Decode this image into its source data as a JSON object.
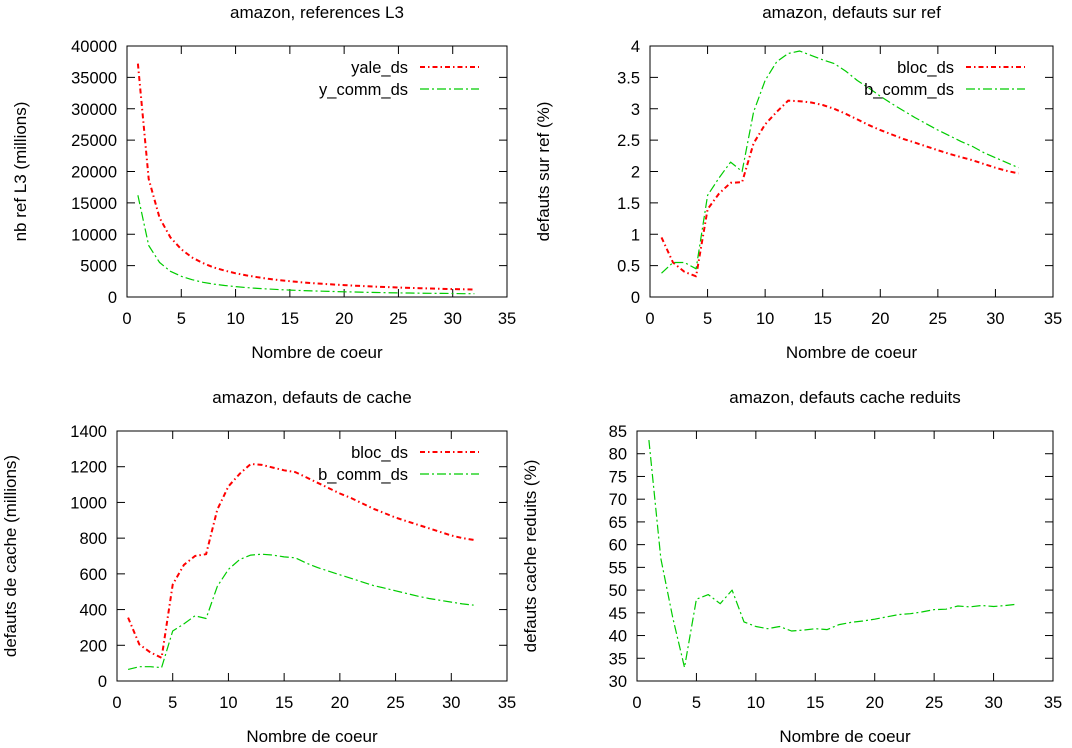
{
  "chart_data": [
    {
      "type": "line",
      "title": "amazon, references L3",
      "xlabel": "Nombre de coeur",
      "ylabel": "nb ref L3 (millions)",
      "xlim": [
        0,
        35
      ],
      "ylim": [
        0,
        40000
      ],
      "xticks": [
        0,
        5,
        10,
        15,
        20,
        25,
        30,
        35
      ],
      "yticks": [
        0,
        5000,
        10000,
        15000,
        20000,
        25000,
        30000,
        35000,
        40000
      ],
      "legend_position": "top-right",
      "series": [
        {
          "name": "yale_ds",
          "color": "#ff0000",
          "dash": "dash-dot",
          "x": [
            1,
            2,
            3,
            4,
            5,
            6,
            7,
            8,
            9,
            10,
            11,
            12,
            13,
            14,
            15,
            16,
            17,
            18,
            19,
            20,
            21,
            22,
            23,
            24,
            25,
            26,
            27,
            28,
            29,
            30,
            31,
            32
          ],
          "y": [
            37200,
            18800,
            12600,
            9500,
            7600,
            6300,
            5400,
            4700,
            4200,
            3780,
            3440,
            3150,
            2900,
            2700,
            2520,
            2360,
            2220,
            2100,
            1990,
            1890,
            1800,
            1720,
            1640,
            1570,
            1510,
            1450,
            1400,
            1350,
            1300,
            1260,
            1220,
            1180
          ]
        },
        {
          "name": "y_comm_ds",
          "color": "#00cc00",
          "dash": "long-dash-dot",
          "x": [
            1,
            2,
            3,
            4,
            5,
            6,
            7,
            8,
            9,
            10,
            11,
            12,
            13,
            14,
            15,
            16,
            17,
            18,
            19,
            20,
            21,
            22,
            23,
            24,
            25,
            26,
            27,
            28,
            29,
            30,
            31,
            32
          ],
          "y": [
            16200,
            8200,
            5500,
            4100,
            3300,
            2750,
            2350,
            2060,
            1830,
            1650,
            1500,
            1370,
            1270,
            1180,
            1100,
            1030,
            970,
            920,
            870,
            830,
            790,
            750,
            720,
            690,
            660,
            640,
            610,
            590,
            570,
            550,
            530,
            520
          ]
        }
      ]
    },
    {
      "type": "line",
      "title": "amazon, defauts sur ref",
      "xlabel": "Nombre de coeur",
      "ylabel": "defauts sur ref (%)",
      "xlim": [
        0,
        35
      ],
      "ylim": [
        0,
        4
      ],
      "xticks": [
        0,
        5,
        10,
        15,
        20,
        25,
        30,
        35
      ],
      "yticks": [
        0,
        0.5,
        1,
        1.5,
        2,
        2.5,
        3,
        3.5,
        4
      ],
      "legend_position": "top-right",
      "series": [
        {
          "name": "bloc_ds",
          "color": "#ff0000",
          "dash": "dash-dot",
          "x": [
            1,
            2,
            3,
            4,
            5,
            6,
            7,
            8,
            9,
            10,
            11,
            12,
            13,
            14,
            15,
            16,
            17,
            18,
            19,
            20,
            21,
            22,
            23,
            24,
            25,
            26,
            27,
            28,
            29,
            30,
            31,
            32
          ],
          "y": [
            0.95,
            0.55,
            0.4,
            0.33,
            1.4,
            1.65,
            1.82,
            1.83,
            2.45,
            2.75,
            2.95,
            3.13,
            3.12,
            3.1,
            3.06,
            3.0,
            2.92,
            2.83,
            2.74,
            2.66,
            2.59,
            2.52,
            2.46,
            2.4,
            2.34,
            2.28,
            2.23,
            2.18,
            2.12,
            2.06,
            2.01,
            1.97
          ]
        },
        {
          "name": "b_comm_ds",
          "color": "#00cc00",
          "dash": "long-dash-dot",
          "x": [
            1,
            2,
            3,
            4,
            5,
            6,
            7,
            8,
            9,
            10,
            11,
            12,
            13,
            14,
            15,
            16,
            17,
            18,
            19,
            20,
            21,
            22,
            23,
            24,
            25,
            26,
            27,
            28,
            29,
            30,
            31,
            32
          ],
          "y": [
            0.38,
            0.55,
            0.55,
            0.45,
            1.62,
            1.9,
            2.15,
            2.0,
            2.95,
            3.45,
            3.75,
            3.88,
            3.92,
            3.85,
            3.78,
            3.72,
            3.6,
            3.45,
            3.33,
            3.2,
            3.08,
            2.97,
            2.86,
            2.76,
            2.66,
            2.57,
            2.48,
            2.4,
            2.3,
            2.22,
            2.14,
            2.06
          ]
        }
      ]
    },
    {
      "type": "line",
      "title": "amazon, defauts de cache",
      "xlabel": "Nombre de coeur",
      "ylabel": "defauts de cache (millions)",
      "xlim": [
        0,
        35
      ],
      "ylim": [
        0,
        1400
      ],
      "xticks": [
        0,
        5,
        10,
        15,
        20,
        25,
        30,
        35
      ],
      "yticks": [
        0,
        200,
        400,
        600,
        800,
        1000,
        1200,
        1400
      ],
      "legend_position": "top-right",
      "series": [
        {
          "name": "bloc_ds",
          "color": "#ff0000",
          "dash": "dash-dot",
          "x": [
            1,
            2,
            3,
            4,
            5,
            6,
            7,
            8,
            9,
            10,
            11,
            12,
            13,
            14,
            15,
            16,
            17,
            18,
            19,
            20,
            21,
            22,
            23,
            24,
            25,
            26,
            27,
            28,
            29,
            30,
            31,
            32
          ],
          "y": [
            355,
            205,
            160,
            130,
            540,
            650,
            700,
            710,
            960,
            1090,
            1160,
            1215,
            1210,
            1195,
            1180,
            1170,
            1140,
            1110,
            1080,
            1050,
            1025,
            995,
            965,
            940,
            915,
            895,
            875,
            855,
            835,
            815,
            800,
            790
          ]
        },
        {
          "name": "b_comm_ds",
          "color": "#00cc00",
          "dash": "long-dash-dot",
          "x": [
            1,
            2,
            3,
            4,
            5,
            6,
            7,
            8,
            9,
            10,
            11,
            12,
            13,
            14,
            15,
            16,
            17,
            18,
            19,
            20,
            21,
            22,
            23,
            24,
            25,
            26,
            27,
            28,
            29,
            30,
            31,
            32
          ],
          "y": [
            65,
            80,
            80,
            75,
            280,
            320,
            365,
            350,
            530,
            625,
            680,
            705,
            710,
            705,
            695,
            690,
            660,
            635,
            615,
            595,
            575,
            555,
            535,
            520,
            505,
            490,
            475,
            462,
            452,
            442,
            432,
            425
          ]
        }
      ]
    },
    {
      "type": "line",
      "title": "amazon, defauts cache reduits",
      "xlabel": "Nombre de coeur",
      "ylabel": "defauts cache reduits (%)",
      "xlim": [
        0,
        35
      ],
      "ylim": [
        30,
        85
      ],
      "xticks": [
        0,
        5,
        10,
        15,
        20,
        25,
        30,
        35
      ],
      "yticks": [
        30,
        35,
        40,
        45,
        50,
        55,
        60,
        65,
        70,
        75,
        80,
        85
      ],
      "legend_position": "none",
      "series": [
        {
          "color": "#00cc00",
          "dash": "long-dash-dot",
          "x": [
            1,
            2,
            3,
            4,
            5,
            6,
            7,
            8,
            9,
            10,
            11,
            12,
            13,
            14,
            15,
            16,
            17,
            18,
            19,
            20,
            21,
            22,
            23,
            24,
            25,
            26,
            27,
            28,
            29,
            30,
            31,
            32
          ],
          "y": [
            83,
            57,
            44,
            33,
            48,
            49,
            47,
            50,
            43,
            42,
            41.5,
            42,
            41,
            41.2,
            41.5,
            41.3,
            42.4,
            42.9,
            43.2,
            43.6,
            44.1,
            44.6,
            44.8,
            45.2,
            45.7,
            45.8,
            46.5,
            46.3,
            46.6,
            46.4,
            46.6,
            46.9
          ]
        }
      ]
    }
  ]
}
